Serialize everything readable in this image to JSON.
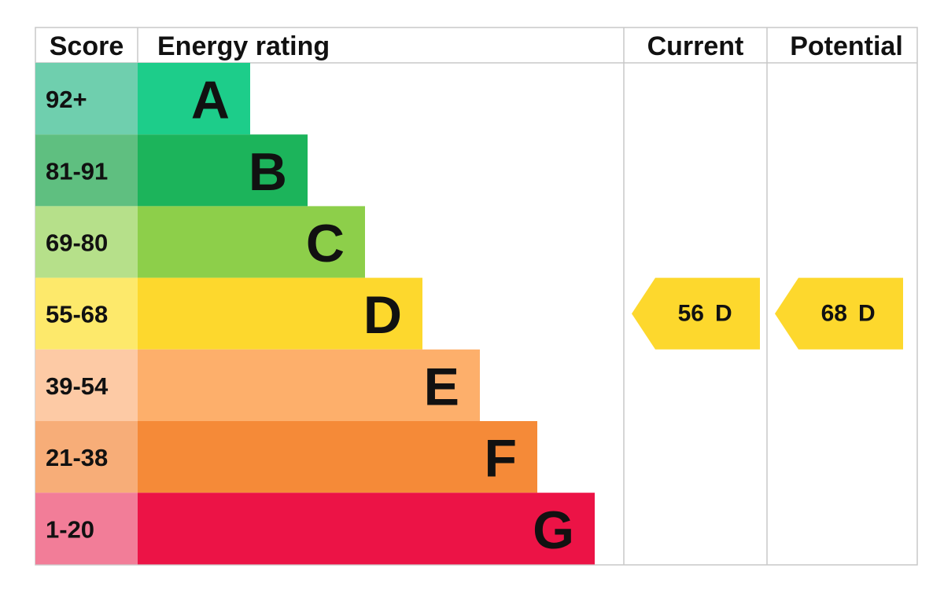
{
  "header": {
    "score": "Score",
    "rating": "Energy rating",
    "current": "Current",
    "potential": "Potential"
  },
  "rows": [
    {
      "score": "92+",
      "band": "A",
      "score_color": "#6fcfae",
      "bar_color": "#1dcd8a"
    },
    {
      "score": "81-91",
      "band": "B",
      "score_color": "#5fbf80",
      "bar_color": "#1cb45b"
    },
    {
      "score": "69-80",
      "band": "C",
      "score_color": "#b6e08a",
      "bar_color": "#8dcf4a"
    },
    {
      "score": "55-68",
      "band": "D",
      "score_color": "#fde96b",
      "bar_color": "#fdd82d"
    },
    {
      "score": "39-54",
      "band": "E",
      "score_color": "#fdcaa5",
      "bar_color": "#fdaf6b"
    },
    {
      "score": "21-38",
      "band": "F",
      "score_color": "#f7ad78",
      "bar_color": "#f58a38"
    },
    {
      "score": "1-20",
      "band": "G",
      "score_color": "#f27d98",
      "bar_color": "#ec1346"
    }
  ],
  "current": {
    "value": 56,
    "band": "D"
  },
  "potential": {
    "value": 68,
    "band": "D"
  }
}
